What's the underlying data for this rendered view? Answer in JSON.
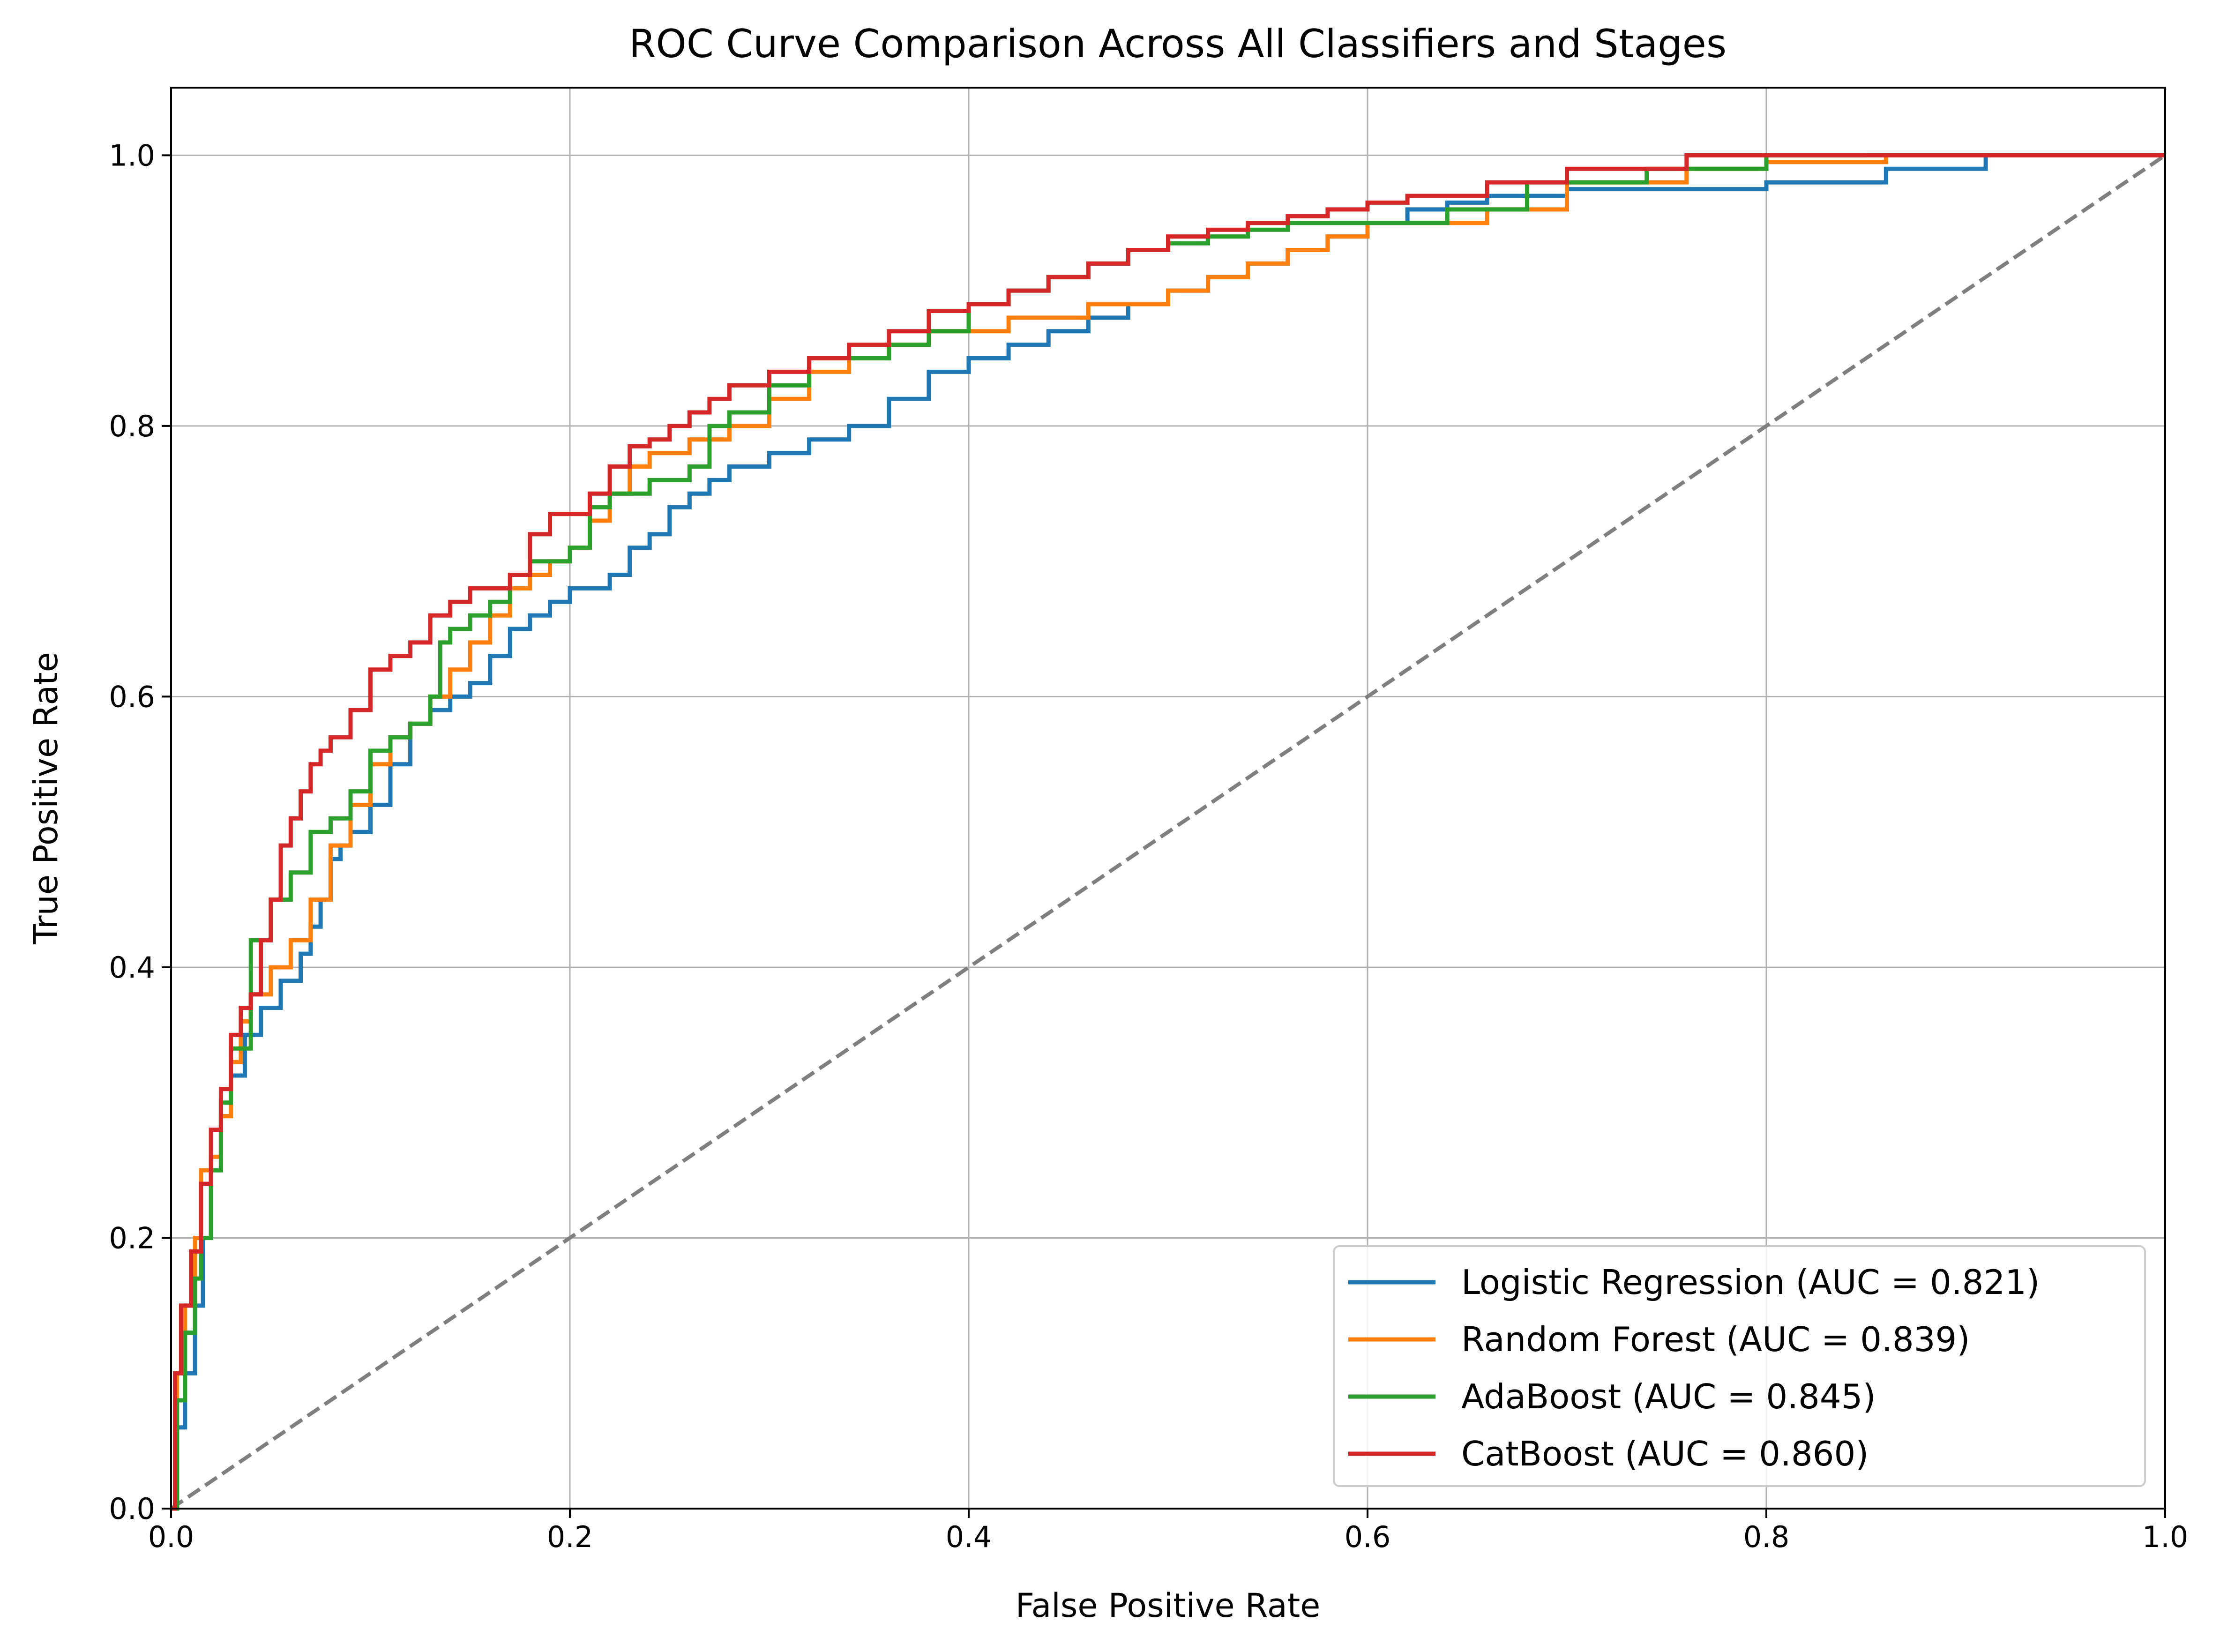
{
  "chart_data": {
    "type": "line",
    "title": "ROC Curve Comparison Across All Classifiers and Stages",
    "xlabel": "False Positive Rate",
    "ylabel": "True Positive Rate",
    "xlim": [
      0.0,
      1.0
    ],
    "ylim": [
      0.0,
      1.05
    ],
    "xticks": [
      0.0,
      0.2,
      0.4,
      0.6,
      0.8,
      1.0
    ],
    "xtick_labels": [
      "0.0",
      "0.2",
      "0.4",
      "0.6",
      "0.8",
      "1.0"
    ],
    "yticks": [
      0.0,
      0.2,
      0.4,
      0.6,
      0.8,
      1.0
    ],
    "ytick_labels": [
      "0.0",
      "0.2",
      "0.4",
      "0.6",
      "0.8",
      "1.0"
    ],
    "grid": true,
    "legend_position": "lower-right",
    "diagonal": {
      "name": "chance",
      "color": "#7f7f7f",
      "style": "dashed",
      "x": [
        0,
        1
      ],
      "y": [
        0,
        1
      ]
    },
    "series": [
      {
        "name": "Logistic Regression",
        "label": "Logistic Regression (AUC = 0.821)",
        "auc": 0.821,
        "color": "#1f77b4",
        "x": [
          0,
          0.003,
          0.007,
          0.012,
          0.016,
          0.02,
          0.025,
          0.03,
          0.037,
          0.045,
          0.055,
          0.065,
          0.07,
          0.075,
          0.08,
          0.085,
          0.09,
          0.1,
          0.11,
          0.12,
          0.13,
          0.14,
          0.15,
          0.16,
          0.17,
          0.18,
          0.19,
          0.2,
          0.21,
          0.22,
          0.23,
          0.24,
          0.25,
          0.26,
          0.27,
          0.28,
          0.3,
          0.32,
          0.34,
          0.36,
          0.38,
          0.4,
          0.42,
          0.44,
          0.46,
          0.48,
          0.5,
          0.52,
          0.54,
          0.56,
          0.58,
          0.6,
          0.62,
          0.64,
          0.66,
          0.7,
          0.74,
          0.8,
          0.86,
          0.91
        ],
        "y": [
          0,
          0.06,
          0.1,
          0.15,
          0.2,
          0.25,
          0.29,
          0.32,
          0.35,
          0.37,
          0.39,
          0.41,
          0.43,
          0.45,
          0.48,
          0.49,
          0.5,
          0.52,
          0.55,
          0.58,
          0.59,
          0.6,
          0.61,
          0.63,
          0.65,
          0.66,
          0.67,
          0.68,
          0.68,
          0.69,
          0.71,
          0.72,
          0.74,
          0.75,
          0.76,
          0.77,
          0.78,
          0.79,
          0.8,
          0.82,
          0.84,
          0.85,
          0.86,
          0.87,
          0.88,
          0.89,
          0.9,
          0.91,
          0.92,
          0.93,
          0.94,
          0.95,
          0.96,
          0.965,
          0.97,
          0.975,
          0.975,
          0.98,
          0.99,
          1.0
        ]
      },
      {
        "name": "Random Forest",
        "label": "Random Forest (AUC = 0.839)",
        "auc": 0.839,
        "color": "#ff7f0e",
        "x": [
          0,
          0.003,
          0.007,
          0.012,
          0.015,
          0.02,
          0.025,
          0.03,
          0.035,
          0.04,
          0.05,
          0.06,
          0.07,
          0.08,
          0.09,
          0.1,
          0.11,
          0.12,
          0.13,
          0.14,
          0.15,
          0.16,
          0.17,
          0.18,
          0.19,
          0.2,
          0.21,
          0.22,
          0.23,
          0.24,
          0.25,
          0.26,
          0.27,
          0.28,
          0.3,
          0.32,
          0.34,
          0.36,
          0.38,
          0.4,
          0.42,
          0.44,
          0.46,
          0.48,
          0.5,
          0.52,
          0.54,
          0.56,
          0.58,
          0.6,
          0.62,
          0.66,
          0.7,
          0.76,
          0.8,
          0.86
        ],
        "y": [
          0,
          0.1,
          0.15,
          0.2,
          0.25,
          0.26,
          0.29,
          0.33,
          0.36,
          0.38,
          0.4,
          0.42,
          0.45,
          0.49,
          0.52,
          0.55,
          0.57,
          0.58,
          0.6,
          0.62,
          0.64,
          0.66,
          0.68,
          0.69,
          0.7,
          0.71,
          0.73,
          0.75,
          0.77,
          0.78,
          0.78,
          0.79,
          0.79,
          0.8,
          0.82,
          0.84,
          0.85,
          0.86,
          0.87,
          0.87,
          0.88,
          0.88,
          0.89,
          0.89,
          0.9,
          0.91,
          0.92,
          0.93,
          0.94,
          0.95,
          0.95,
          0.96,
          0.98,
          0.99,
          0.995,
          1.0
        ]
      },
      {
        "name": "AdaBoost",
        "label": "AdaBoost (AUC = 0.845)",
        "auc": 0.845,
        "color": "#2ca02c",
        "x": [
          0,
          0.003,
          0.007,
          0.012,
          0.015,
          0.02,
          0.025,
          0.03,
          0.04,
          0.05,
          0.06,
          0.07,
          0.08,
          0.09,
          0.1,
          0.11,
          0.12,
          0.13,
          0.135,
          0.14,
          0.15,
          0.16,
          0.17,
          0.18,
          0.19,
          0.2,
          0.21,
          0.22,
          0.24,
          0.26,
          0.27,
          0.28,
          0.3,
          0.32,
          0.34,
          0.36,
          0.38,
          0.4,
          0.42,
          0.44,
          0.46,
          0.48,
          0.5,
          0.52,
          0.54,
          0.56,
          0.6,
          0.64,
          0.68,
          0.74,
          0.8,
          0.85
        ],
        "y": [
          0,
          0.08,
          0.13,
          0.17,
          0.2,
          0.25,
          0.3,
          0.34,
          0.42,
          0.45,
          0.47,
          0.5,
          0.51,
          0.53,
          0.56,
          0.57,
          0.58,
          0.6,
          0.64,
          0.65,
          0.66,
          0.67,
          0.69,
          0.7,
          0.7,
          0.71,
          0.74,
          0.75,
          0.76,
          0.77,
          0.8,
          0.81,
          0.83,
          0.85,
          0.85,
          0.86,
          0.87,
          0.89,
          0.9,
          0.91,
          0.92,
          0.93,
          0.935,
          0.94,
          0.945,
          0.95,
          0.95,
          0.96,
          0.98,
          0.99,
          1.0,
          1.0
        ]
      },
      {
        "name": "CatBoost",
        "label": "CatBoost (AUC = 0.860)",
        "auc": 0.86,
        "color": "#d62728",
        "x": [
          0,
          0.002,
          0.005,
          0.01,
          0.015,
          0.02,
          0.025,
          0.03,
          0.035,
          0.04,
          0.045,
          0.05,
          0.055,
          0.06,
          0.065,
          0.07,
          0.075,
          0.08,
          0.09,
          0.1,
          0.11,
          0.12,
          0.13,
          0.14,
          0.15,
          0.16,
          0.17,
          0.18,
          0.19,
          0.2,
          0.21,
          0.22,
          0.23,
          0.24,
          0.25,
          0.26,
          0.27,
          0.28,
          0.3,
          0.32,
          0.34,
          0.36,
          0.38,
          0.4,
          0.42,
          0.44,
          0.46,
          0.48,
          0.5,
          0.52,
          0.54,
          0.56,
          0.58,
          0.6,
          0.62,
          0.66,
          0.7,
          0.76,
          0.84,
          1.0
        ],
        "y": [
          0,
          0.1,
          0.15,
          0.19,
          0.24,
          0.28,
          0.31,
          0.35,
          0.37,
          0.38,
          0.42,
          0.45,
          0.49,
          0.51,
          0.53,
          0.55,
          0.56,
          0.57,
          0.59,
          0.62,
          0.63,
          0.64,
          0.66,
          0.67,
          0.68,
          0.68,
          0.69,
          0.72,
          0.735,
          0.735,
          0.75,
          0.77,
          0.785,
          0.79,
          0.8,
          0.81,
          0.82,
          0.83,
          0.84,
          0.85,
          0.86,
          0.87,
          0.885,
          0.89,
          0.9,
          0.91,
          0.92,
          0.93,
          0.94,
          0.945,
          0.95,
          0.955,
          0.96,
          0.965,
          0.97,
          0.98,
          0.99,
          1.0,
          1.0,
          1.0
        ]
      }
    ]
  }
}
